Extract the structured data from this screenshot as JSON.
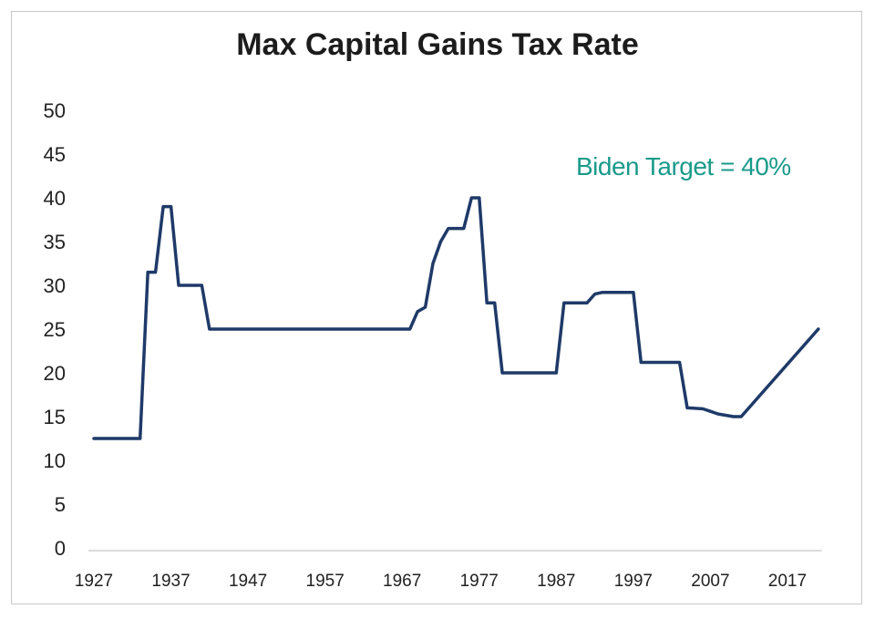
{
  "chart_data": {
    "type": "line",
    "title": "Max Capital Gains Tax Rate",
    "xlabel": "",
    "ylabel": "",
    "xlim": [
      1927,
      2021
    ],
    "ylim": [
      0,
      50
    ],
    "x_ticks": [
      1927,
      1937,
      1947,
      1957,
      1967,
      1977,
      1987,
      1997,
      2007,
      2017
    ],
    "y_ticks": [
      0,
      5,
      10,
      15,
      20,
      25,
      30,
      35,
      40,
      45,
      50
    ],
    "grid": false,
    "legend": "none",
    "annotation": "Biden Target = 40%",
    "colors": {
      "line": "#1f3a68",
      "annotation": "#1a9a8a"
    },
    "series": [
      {
        "x": [
          1927,
          1933,
          1934,
          1935,
          1936,
          1937,
          1938,
          1941,
          1942,
          1968,
          1969,
          1970,
          1971,
          1972,
          1973,
          1975,
          1976,
          1977,
          1978,
          1979,
          1980,
          1981,
          1987,
          1988,
          1991,
          1992,
          1993,
          1997,
          1998,
          2003,
          2004,
          2006,
          2007,
          2008,
          2010,
          2011,
          2021
        ],
        "y": [
          12.5,
          12.5,
          31.5,
          31.5,
          39,
          39,
          30,
          30,
          25,
          25,
          27,
          27.5,
          32.5,
          35,
          36.5,
          36.5,
          40,
          40,
          28,
          28,
          20,
          20,
          20,
          28,
          28,
          29,
          29.2,
          29.2,
          21.2,
          21.2,
          16,
          15.9,
          15.6,
          15.3,
          15,
          15,
          25
        ]
      }
    ]
  }
}
